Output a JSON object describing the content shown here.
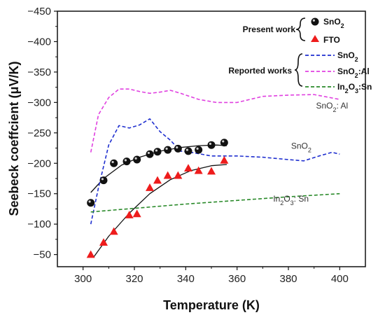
{
  "chart_data": {
    "type": "scatter",
    "xlabel": "Temperature (K)",
    "ylabel": "Seebeck coeffcient (μV/K)",
    "xlim": [
      290,
      410
    ],
    "ylim": [
      -30,
      -450
    ],
    "x_ticks": [
      300,
      320,
      340,
      360,
      380,
      400
    ],
    "y_ticks": [
      -50,
      -100,
      -150,
      -200,
      -250,
      -300,
      -350,
      -400,
      -450
    ],
    "grid": false,
    "legend_placement": "top-right",
    "legend": {
      "group_present": "Present work",
      "group_reported": "Reported works",
      "present_entries": [
        {
          "ref": "sno2",
          "label_main": "SnO",
          "label_sub": "2"
        },
        {
          "ref": "fto",
          "label_main": "FTO",
          "label_sub": ""
        }
      ],
      "reported_entries": [
        {
          "ref": "rep_sno2",
          "label_main": "SnO",
          "label_sub": "2",
          "label_rest": "",
          "label_sub2": "",
          "label_tail": ""
        },
        {
          "ref": "rep_al",
          "label_main": "SnO",
          "label_sub": "2",
          "label_rest": ":Al",
          "label_sub2": "",
          "label_tail": ""
        },
        {
          "ref": "rep_in",
          "label_main": "In",
          "label_sub": "2",
          "label_rest": "O",
          "label_sub2": "3",
          "label_tail": ":Sn"
        }
      ]
    },
    "annotations": [
      {
        "ref": "al",
        "main": "SnO",
        "sub": "2",
        "rest": ": Al",
        "sub2": "",
        "tail": "",
        "x": 397,
        "y": -290
      },
      {
        "ref": "sno2",
        "main": "SnO",
        "sub": "2",
        "rest": "",
        "sub2": "",
        "tail": "",
        "x": 385,
        "y": -224
      },
      {
        "ref": "in",
        "main": "In",
        "sub": "2",
        "rest": "O",
        "sub2": "3",
        "tail": ": Sn",
        "x": 381,
        "y": -137
      }
    ],
    "colors": {
      "sno2_marker": "#111111",
      "fto_marker": "#ee1c1c",
      "rep_sno2": "#1f2fcf",
      "rep_al": "#e040e0",
      "rep_in": "#2a8a2a"
    },
    "series": [
      {
        "ref": "sno2",
        "marker": "circle",
        "x": [
          303,
          308,
          312,
          317,
          321,
          326,
          329,
          333,
          337,
          341,
          345,
          350,
          355
        ],
        "y": [
          -135,
          -172,
          -200,
          -203,
          -206,
          -215,
          -219,
          -222,
          -224,
          -220,
          -222,
          -230,
          -234
        ]
      },
      {
        "ref": "fto",
        "marker": "triangle",
        "x": [
          303,
          308,
          312,
          318,
          321,
          326,
          329,
          333,
          337,
          341,
          345,
          350,
          355
        ],
        "y": [
          -50,
          -70,
          -88,
          -115,
          -117,
          -160,
          -172,
          -180,
          -180,
          -192,
          -188,
          -187,
          -205
        ]
      },
      {
        "ref": "sno2_fit",
        "style": "solid",
        "x": [
          303,
          308,
          315,
          322,
          330,
          338,
          345,
          352,
          356
        ],
        "y": [
          -152,
          -175,
          -197,
          -210,
          -220,
          -226,
          -229,
          -230,
          -229
        ]
      },
      {
        "ref": "fto_fit",
        "style": "solid",
        "x": [
          304,
          310,
          318,
          326,
          334,
          342,
          350,
          356
        ],
        "y": [
          -45,
          -80,
          -118,
          -150,
          -173,
          -188,
          -196,
          -198
        ]
      },
      {
        "ref": "rep_sno2",
        "style": "dashed",
        "x": [
          303,
          306,
          310,
          314,
          318,
          322,
          326,
          330,
          334,
          338,
          342,
          350,
          360,
          370,
          380,
          386,
          392,
          397,
          400
        ],
        "y": [
          -100,
          -160,
          -230,
          -262,
          -258,
          -263,
          -273,
          -252,
          -238,
          -220,
          -218,
          -212,
          -212,
          -210,
          -206,
          -204,
          -212,
          -218,
          -215
        ]
      },
      {
        "ref": "rep_al",
        "style": "dashed",
        "x": [
          303,
          306,
          310,
          314,
          318,
          322,
          326,
          330,
          334,
          338,
          345,
          352,
          360,
          370,
          380,
          390,
          400
        ],
        "y": [
          -218,
          -280,
          -308,
          -322,
          -322,
          -318,
          -315,
          -317,
          -320,
          -315,
          -305,
          -300,
          -300,
          -310,
          -312,
          -313,
          -305
        ]
      },
      {
        "ref": "rep_in",
        "style": "dashed",
        "x": [
          303,
          320,
          340,
          360,
          380,
          400
        ],
        "y": [
          -120,
          -126,
          -133,
          -139,
          -145,
          -150
        ]
      }
    ]
  }
}
